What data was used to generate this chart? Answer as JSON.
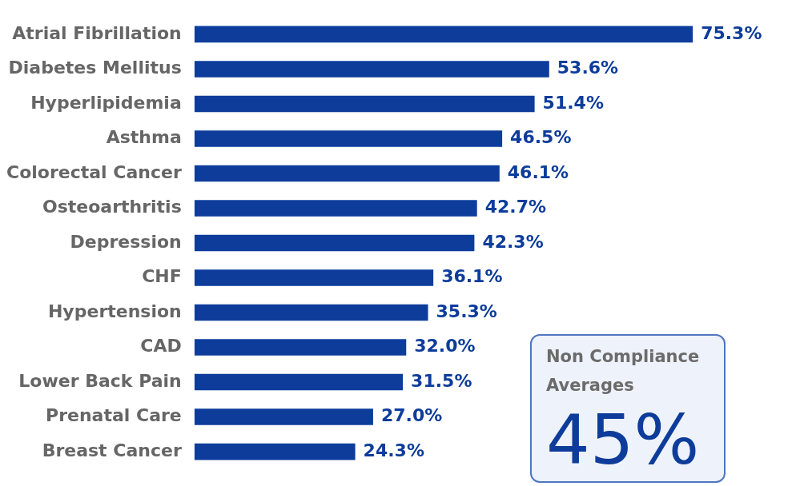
{
  "chart_data": {
    "type": "bar",
    "orientation": "horizontal",
    "categories": [
      "Atrial Fibrillation",
      "Diabetes Mellitus",
      "Hyperlipidemia",
      "Asthma",
      "Colorectal Cancer",
      "Osteoarthritis",
      "Depression",
      "CHF",
      "Hypertension",
      "CAD",
      "Lower Back Pain",
      "Prenatal Care",
      "Breast Cancer"
    ],
    "values": [
      75.3,
      53.6,
      51.4,
      46.5,
      46.1,
      42.7,
      42.3,
      36.1,
      35.3,
      32.0,
      31.5,
      27.0,
      24.3
    ],
    "value_labels": [
      "75.3%",
      "53.6%",
      "51.4%",
      "46.5%",
      "46.1%",
      "42.7%",
      "42.3%",
      "36.1%",
      "35.3%",
      "32.0%",
      "31.5%",
      "27.0%",
      "24.3%"
    ],
    "color": "#0d3c9b",
    "annotations": [
      "Non Compliance Averages",
      "45%"
    ]
  }
}
